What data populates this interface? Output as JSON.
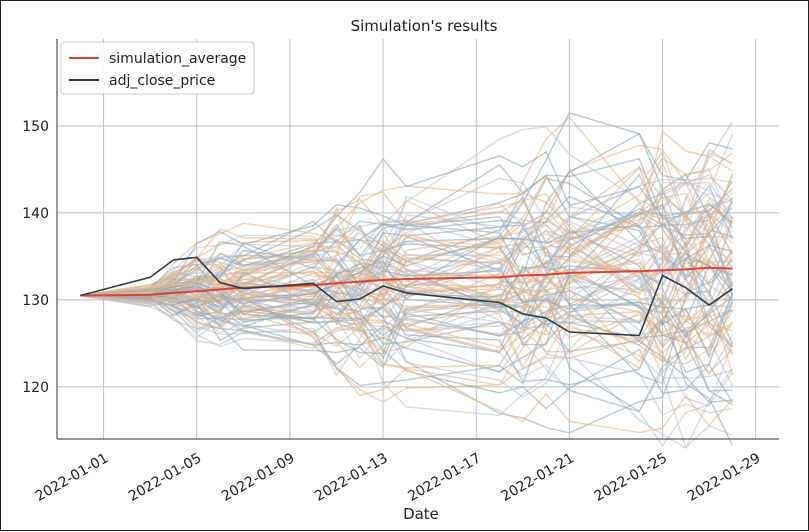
{
  "chart_data": {
    "type": "line",
    "title": "Simulation's results",
    "xlabel": "Date",
    "ylabel": "",
    "x": [
      "2021-12-31",
      "2022-01-03",
      "2022-01-04",
      "2022-01-05",
      "2022-01-06",
      "2022-01-07",
      "2022-01-10",
      "2022-01-11",
      "2022-01-12",
      "2022-01-13",
      "2022-01-14",
      "2022-01-18",
      "2022-01-19",
      "2022-01-20",
      "2022-01-21",
      "2022-01-24",
      "2022-01-25",
      "2022-01-26",
      "2022-01-27",
      "2022-01-28"
    ],
    "xlim": [
      "2021-12-30",
      "2022-01-30"
    ],
    "ylim": [
      114,
      160
    ],
    "xticks": [
      "2022-01-01",
      "2022-01-05",
      "2022-01-09",
      "2022-01-13",
      "2022-01-17",
      "2022-01-21",
      "2022-01-25",
      "2022-01-29"
    ],
    "yticks": [
      120,
      130,
      140,
      150
    ],
    "grid": true,
    "legend_position": "top-left",
    "series": [
      {
        "name": "simulation_average",
        "color": "#e8402a",
        "values": [
          130.5,
          130.6,
          130.8,
          131.0,
          131.2,
          131.4,
          131.7,
          131.9,
          132.1,
          132.3,
          132.4,
          132.6,
          132.8,
          132.9,
          133.1,
          133.3,
          133.4,
          133.5,
          133.7,
          133.6
        ]
      },
      {
        "name": "adj_close_price",
        "color": "#2c3e50",
        "values": [
          130.5,
          132.6,
          134.6,
          134.9,
          132.0,
          131.3,
          131.9,
          129.8,
          130.1,
          131.6,
          130.8,
          129.7,
          128.4,
          127.9,
          126.3,
          125.9,
          132.8,
          131.4,
          129.4,
          131.3
        ]
      }
    ],
    "simulations": {
      "count": 100,
      "colors": [
        "#f0b37a",
        "#8ea9b8",
        "#b7bfd0"
      ],
      "spread": [
        0,
        1.4,
        2.4,
        3.2,
        3.8,
        4.2,
        4.8,
        5.3,
        5.7,
        6.1,
        6.4,
        6.9,
        7.3,
        7.7,
        8.0,
        8.5,
        8.8,
        9.1,
        9.3,
        9.6
      ]
    }
  }
}
